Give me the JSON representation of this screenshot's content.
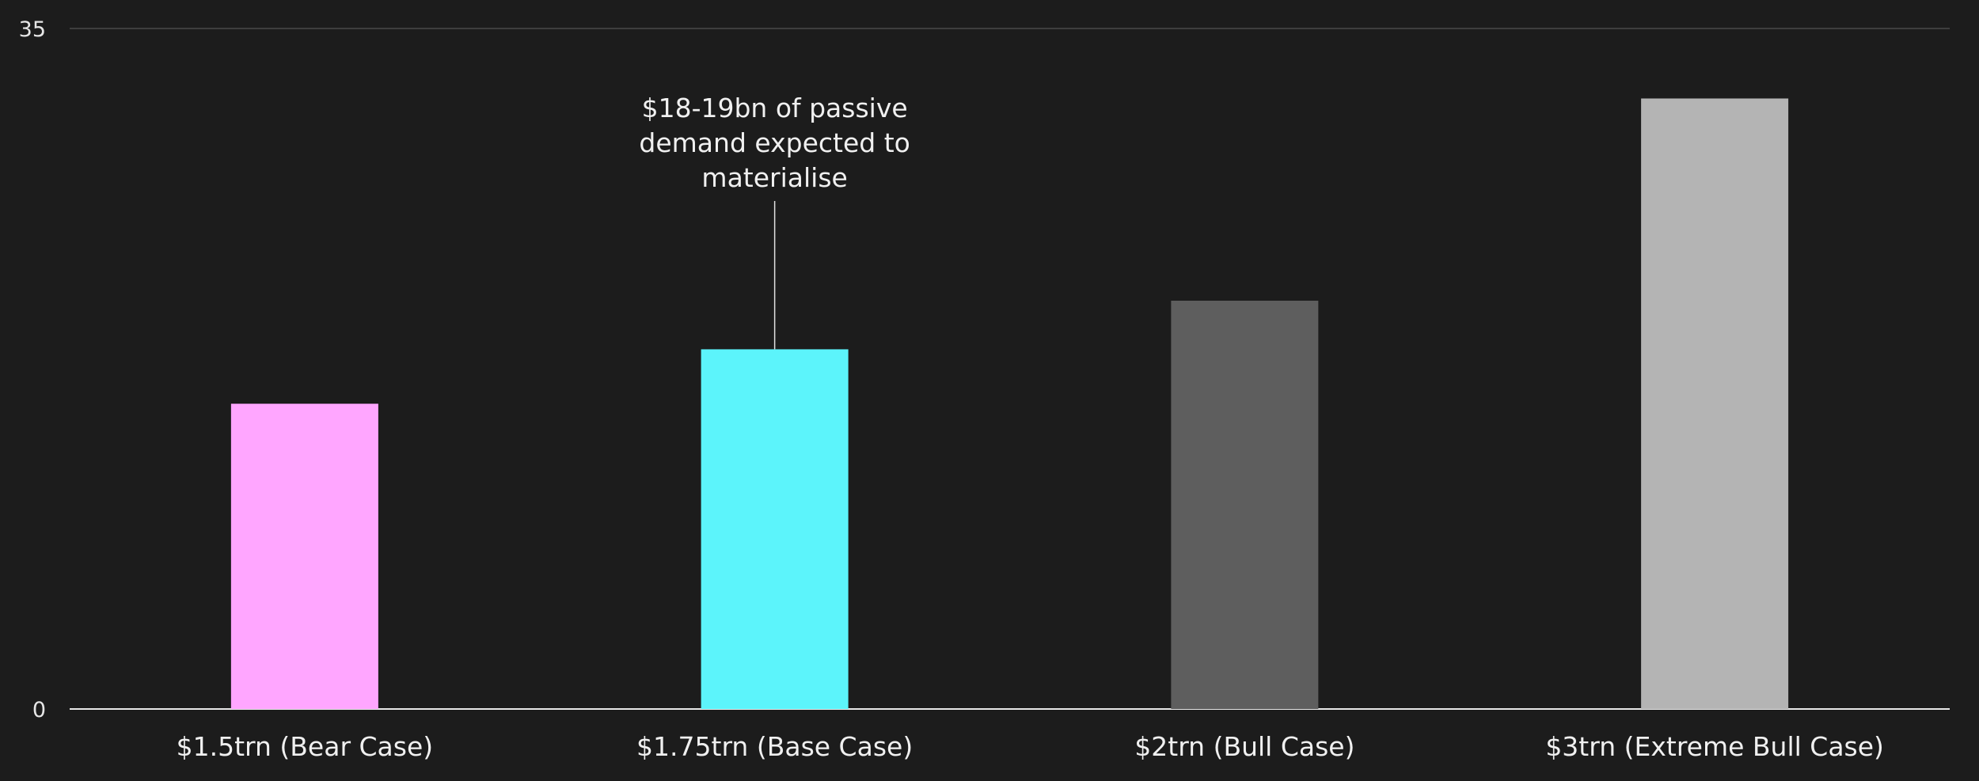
{
  "chart_data": {
    "type": "bar",
    "categories": [
      "$1.5trn (Bear Case)",
      "$1.75trn (Base Case)",
      "$2trn (Bull Case)",
      "$3trn (Extreme Bull Case)"
    ],
    "values": [
      15.7,
      18.5,
      21.0,
      31.4
    ],
    "bar_colors": [
      "#ffa6ff",
      "#5cf4fb",
      "#5e5e5e",
      "#b4b4b4"
    ],
    "ylim": [
      0,
      35
    ],
    "yticks": [
      "0",
      "35"
    ],
    "grid": true,
    "title": "",
    "xlabel": "",
    "ylabel": "",
    "annotation": {
      "category_index": 1,
      "lines": [
        "$18-19bn of passive",
        "demand expected to",
        "materialise"
      ]
    }
  }
}
